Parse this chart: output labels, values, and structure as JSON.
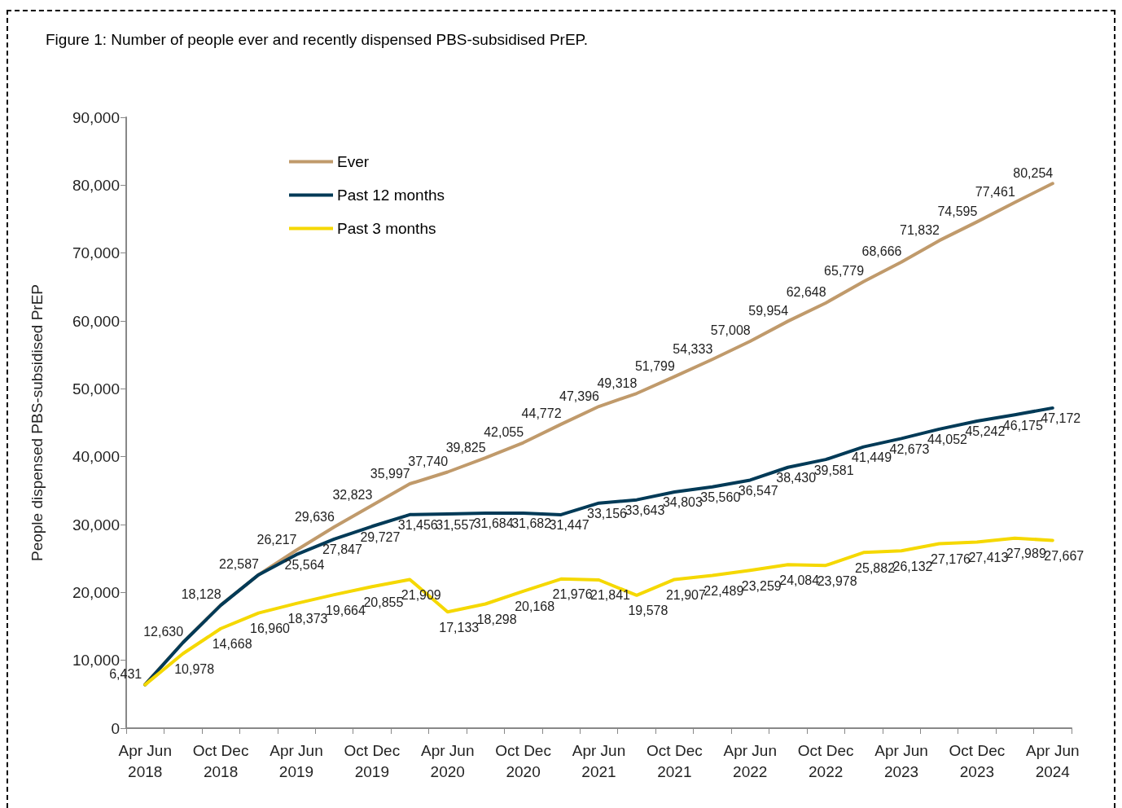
{
  "chart_data": {
    "type": "line",
    "title": "Figure 1: Number of people ever and recently dispensed PBS-subsidised PrEP.",
    "ylabel": "People dispensed PBS-subsidised PrEP",
    "categories": [
      "Apr Jun 2018",
      null,
      "Oct Dec 2018",
      null,
      "Apr Jun 2019",
      null,
      "Oct Dec 2019",
      null,
      "Apr Jun 2020",
      null,
      "Oct Dec 2020",
      null,
      "Apr Jun 2021",
      null,
      "Oct Dec 2021",
      null,
      "Apr Jun 2022",
      null,
      "Oct Dec 2022",
      null,
      "Apr Jun 2023",
      null,
      "Oct Dec 2023",
      null,
      "Apr Jun 2024"
    ],
    "series": [
      {
        "name": "Ever",
        "color": "#c09a6b",
        "values": [
          6431,
          12630,
          18128,
          22587,
          26217,
          29636,
          32823,
          35997,
          37740,
          39825,
          42055,
          44772,
          47396,
          49318,
          51799,
          54333,
          57008,
          59954,
          62648,
          65779,
          68666,
          71832,
          74595,
          77461,
          80254
        ],
        "value_labels": [
          "6,431",
          "12,630",
          "18,128",
          "22,587",
          "26,217",
          "29,636",
          "32,823",
          "35,997",
          "37,740",
          "39,825",
          "42,055",
          "44,772",
          "47,396",
          "49,318",
          "51,799",
          "54,333",
          "57,008",
          "59,954",
          "62,648",
          "65,779",
          "68,666",
          "71,832",
          "74,595",
          "77,461",
          "80,254"
        ]
      },
      {
        "name": "Past 12 months",
        "color": "#003a57",
        "values": [
          6400,
          12600,
          18100,
          22600,
          25564,
          27847,
          29727,
          31456,
          31557,
          31684,
          31682,
          31447,
          33156,
          33643,
          34803,
          35560,
          36547,
          38430,
          39581,
          41449,
          42673,
          44052,
          45242,
          46175,
          47172
        ],
        "value_labels": [
          null,
          null,
          null,
          null,
          "25,564",
          "27,847",
          "29,727",
          "31,456",
          "31,557",
          "31,684",
          "31,682",
          "31,447",
          "33,156",
          "33,643",
          "34,803",
          "35,560",
          "36,547",
          "38,430",
          "39,581",
          "41,449",
          "42,673",
          "44,052",
          "45,242",
          "46,175",
          "47,172"
        ]
      },
      {
        "name": "Past 3 months",
        "color": "#f5d800",
        "values": [
          6400,
          10978,
          14668,
          16960,
          18373,
          19664,
          20855,
          21909,
          17133,
          18298,
          20168,
          21976,
          21841,
          19578,
          21907,
          22489,
          23259,
          24084,
          23978,
          25882,
          26132,
          27176,
          27413,
          27989,
          27667
        ],
        "value_labels": [
          null,
          "10,978",
          "14,668",
          "16,960",
          "18,373",
          "19,664",
          "20,855",
          "21,909",
          "17,133",
          "18,298",
          "20,168",
          "21,976",
          "21,841",
          "19,578",
          "21,907",
          "22,489",
          "23,259",
          "24,084",
          "23,978",
          "25,882",
          "26,132",
          "27,176",
          "27,413",
          "27,989",
          "27,667"
        ]
      }
    ],
    "ylim": [
      0,
      90000
    ],
    "yticks": [
      {
        "value": 0,
        "label": "0"
      },
      {
        "value": 10000,
        "label": "10,000"
      },
      {
        "value": 20000,
        "label": "20,000"
      },
      {
        "value": 30000,
        "label": "30,000"
      },
      {
        "value": 40000,
        "label": "40,000"
      },
      {
        "value": 50000,
        "label": "50,000"
      },
      {
        "value": 60000,
        "label": "60,000"
      },
      {
        "value": 70000,
        "label": "70,000"
      },
      {
        "value": 80000,
        "label": "80,000"
      },
      {
        "value": 90000,
        "label": "90,000"
      }
    ],
    "grid": false,
    "legend": "top left",
    "marker": "none",
    "line_style": "solid"
  }
}
